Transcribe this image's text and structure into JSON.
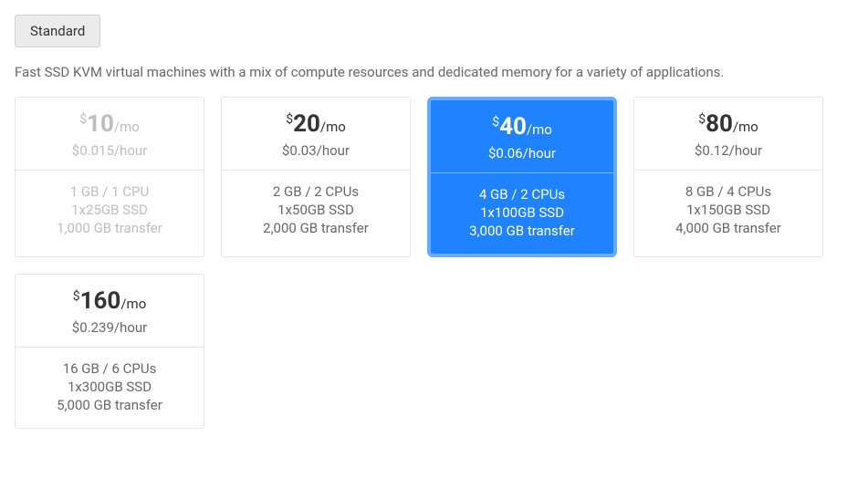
{
  "tab": {
    "label": "Standard"
  },
  "description": "Fast SSD KVM virtual machines with a mix of compute resources and dedicated memory for a variety of applications.",
  "colors": {
    "page_bg": "#ffffff",
    "tab_bg": "#ebebeb",
    "tab_border": "#d1d1d1",
    "card_border": "#e5e5e5",
    "text_primary": "#333333",
    "text_secondary": "#676767",
    "text_disabled": "#bdbdbd",
    "selected_bg": "#1f82ff",
    "selected_border": "#68aaff",
    "selected_text": "#ffffff"
  },
  "currency_symbol": "$",
  "price_suffix": "/mo",
  "plans": [
    {
      "amount": "10",
      "hourly": "$0.015/hour",
      "cpu": "1 GB / 1 CPU",
      "ssd": "1x25GB SSD",
      "transfer": "1,000 GB transfer",
      "state": "disabled"
    },
    {
      "amount": "20",
      "hourly": "$0.03/hour",
      "cpu": "2 GB / 2 CPUs",
      "ssd": "1x50GB SSD",
      "transfer": "2,000 GB transfer",
      "state": "normal"
    },
    {
      "amount": "40",
      "hourly": "$0.06/hour",
      "cpu": "4 GB / 2 CPUs",
      "ssd": "1x100GB SSD",
      "transfer": "3,000 GB transfer",
      "state": "selected"
    },
    {
      "amount": "80",
      "hourly": "$0.12/hour",
      "cpu": "8 GB / 4 CPUs",
      "ssd": "1x150GB SSD",
      "transfer": "4,000 GB transfer",
      "state": "normal"
    },
    {
      "amount": "160",
      "hourly": "$0.239/hour",
      "cpu": "16 GB / 6 CPUs",
      "ssd": "1x300GB SSD",
      "transfer": "5,000 GB transfer",
      "state": "normal"
    }
  ]
}
